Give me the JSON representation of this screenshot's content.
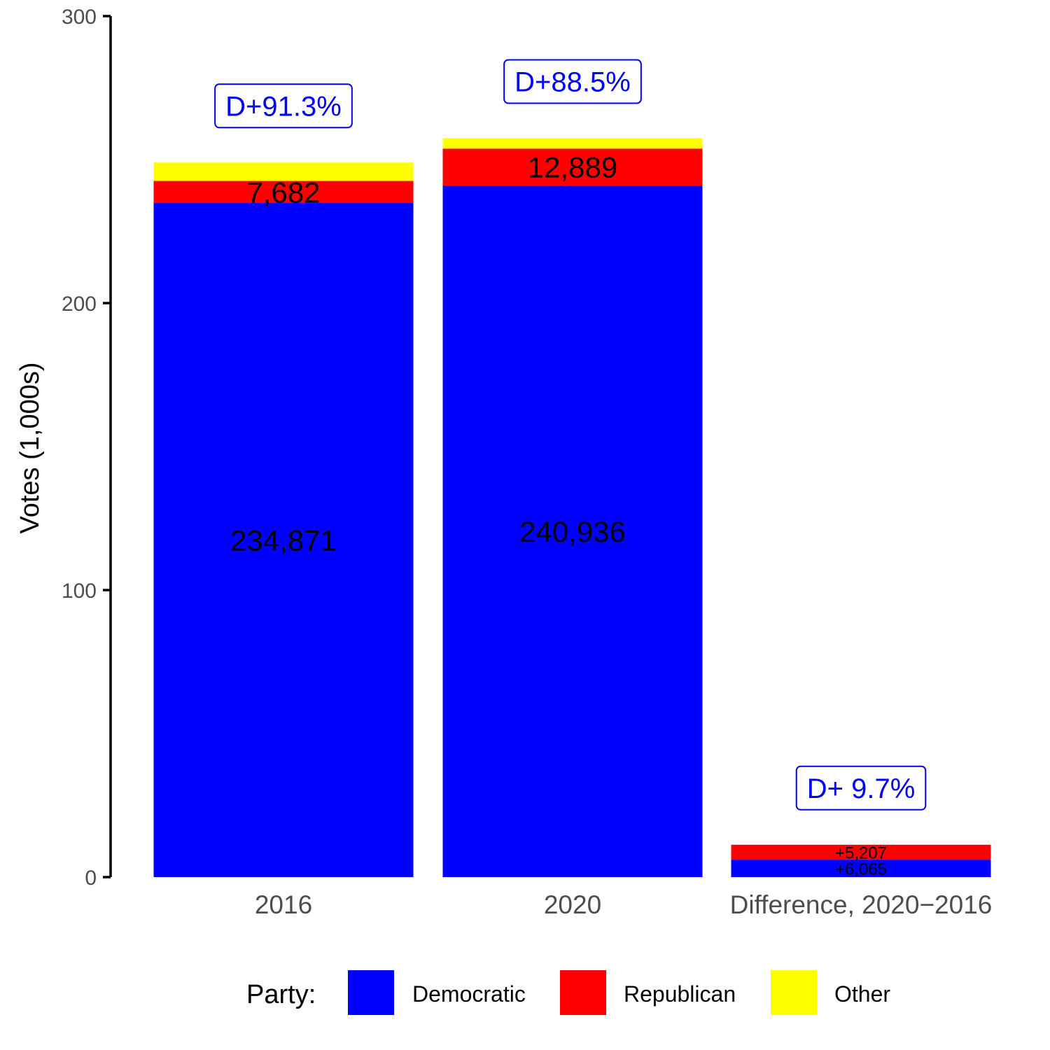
{
  "chart_data": {
    "type": "bar",
    "stacked": true,
    "ylabel": "Votes (1,000s)",
    "ylim": [
      0,
      300
    ],
    "yticks": [
      0,
      100,
      200,
      300
    ],
    "categories": [
      "2016",
      "2020",
      "Difference, 2020−2016"
    ],
    "series": [
      {
        "name": "Democratic",
        "color": "#0000ff",
        "values": [
          234.871,
          240.936,
          6.065
        ],
        "labels": [
          "234,871",
          "240,936",
          "+6,065"
        ]
      },
      {
        "name": "Republican",
        "color": "#ff0000",
        "values": [
          7.682,
          12.889,
          5.207
        ],
        "labels": [
          "7,682",
          "12,889",
          "+5,207"
        ]
      },
      {
        "name": "Other",
        "color": "#ffff00",
        "values": [
          6.4,
          3.6,
          0
        ],
        "labels": [
          "",
          "",
          ""
        ]
      }
    ],
    "margins": [
      "D+91.3%",
      "D+88.5%",
      "D+ 9.7%"
    ],
    "margin_color": "#0000ff",
    "legend": {
      "title": "Party:",
      "placement": "bottom"
    },
    "grid": false
  }
}
